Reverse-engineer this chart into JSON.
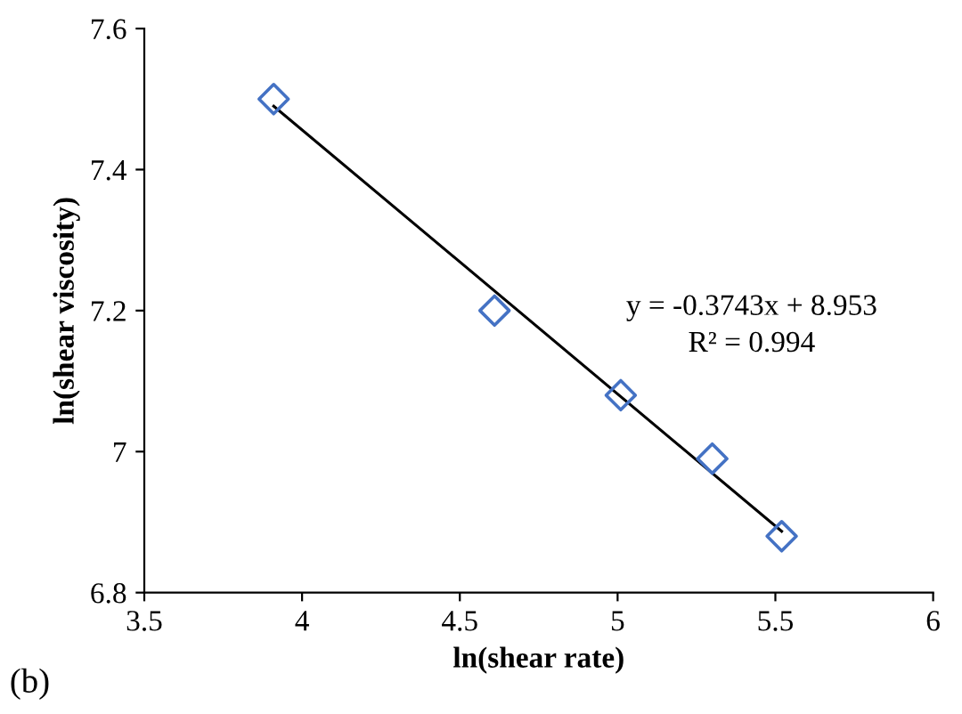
{
  "chart_data": {
    "type": "scatter",
    "xlabel": "ln(shear rate)",
    "ylabel": "ln(shear viscosity)",
    "x": [
      3.91,
      4.61,
      5.01,
      5.3,
      5.52
    ],
    "series": [
      {
        "color": "#4472c4",
        "marker": "diamond",
        "values": [
          7.5,
          7.2,
          7.08,
          6.99,
          6.88
        ]
      },
      {
        "type": "line",
        "color": "#000000",
        "marker": "none",
        "line_style": "solid",
        "x": [
          3.91,
          5.52
        ],
        "values": [
          7.49,
          6.887
        ]
      }
    ],
    "xlim": [
      3.5,
      6
    ],
    "xticks": [
      3.5,
      4,
      4.5,
      5,
      5.5,
      6
    ],
    "ylim": [
      6.8,
      7.6
    ],
    "yticks": [
      6.8,
      7,
      7.2,
      7.4,
      7.6
    ],
    "grid": false,
    "legend": false,
    "annotations": [
      "y = -0.3743x + 8.953",
      "R² = 0.994",
      "(b)"
    ]
  }
}
